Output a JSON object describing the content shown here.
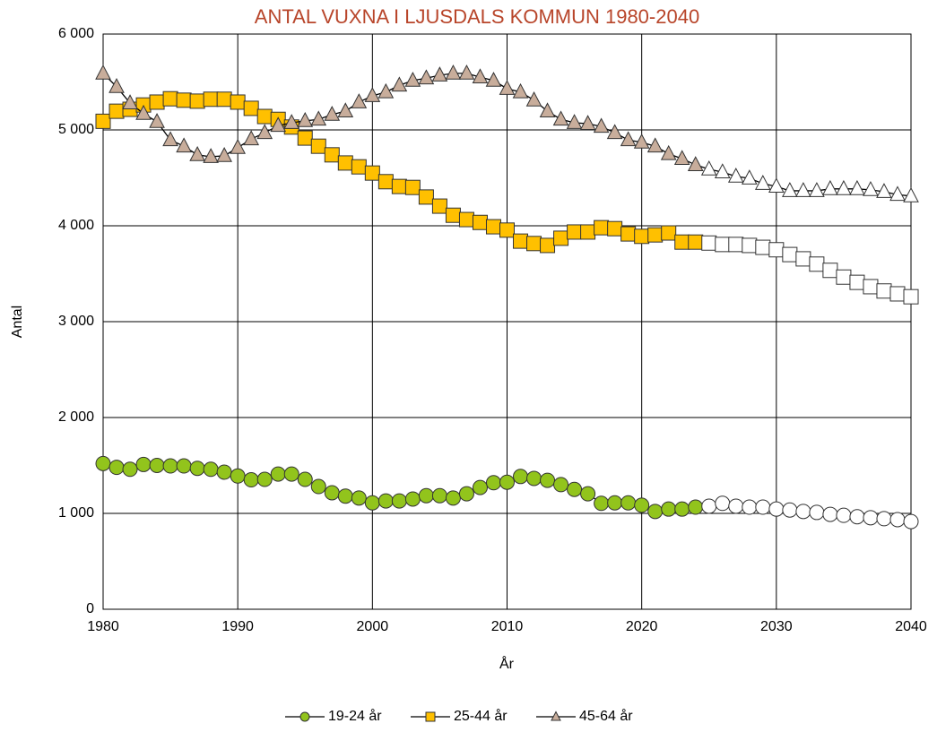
{
  "chart_data": {
    "type": "line",
    "title": "ANTAL VUXNA I LJUSDALS KOMMUN 1980-2040",
    "x_label": "År",
    "y_label": "Antal",
    "x": [
      1980,
      1981,
      1982,
      1983,
      1984,
      1985,
      1986,
      1987,
      1988,
      1989,
      1990,
      1991,
      1992,
      1993,
      1994,
      1995,
      1996,
      1997,
      1998,
      1999,
      2000,
      2001,
      2002,
      2003,
      2004,
      2005,
      2006,
      2007,
      2008,
      2009,
      2010,
      2011,
      2012,
      2013,
      2014,
      2015,
      2016,
      2017,
      2018,
      2019,
      2020,
      2021,
      2022,
      2023,
      2024,
      2025,
      2026,
      2027,
      2028,
      2029,
      2030,
      2031,
      2032,
      2033,
      2034,
      2035,
      2036,
      2037,
      2038,
      2039,
      2040
    ],
    "series": [
      {
        "name": "19-24 år",
        "color": "#92c41c",
        "marker": "circle",
        "values": [
          1520,
          1480,
          1460,
          1510,
          1500,
          1495,
          1495,
          1470,
          1460,
          1430,
          1390,
          1350,
          1355,
          1410,
          1410,
          1355,
          1280,
          1215,
          1180,
          1160,
          1110,
          1130,
          1130,
          1150,
          1185,
          1185,
          1160,
          1205,
          1270,
          1320,
          1325,
          1385,
          1365,
          1345,
          1300,
          1250,
          1205,
          1105,
          1110,
          1110,
          1085,
          1020,
          1045,
          1045,
          1065,
          1075,
          1105,
          1075,
          1065,
          1065,
          1045,
          1035,
          1020,
          1010,
          990,
          980,
          965,
          955,
          945,
          935,
          915
        ]
      },
      {
        "name": "25-44 år",
        "color": "#ffc000",
        "marker": "square",
        "values": [
          5090,
          5195,
          5215,
          5260,
          5290,
          5325,
          5310,
          5300,
          5320,
          5320,
          5290,
          5225,
          5140,
          5110,
          5030,
          4915,
          4830,
          4740,
          4655,
          4615,
          4550,
          4460,
          4410,
          4400,
          4300,
          4205,
          4110,
          4065,
          4035,
          3990,
          3955,
          3840,
          3815,
          3795,
          3870,
          3935,
          3935,
          3980,
          3970,
          3915,
          3890,
          3905,
          3925,
          3830,
          3830,
          3820,
          3805,
          3805,
          3795,
          3775,
          3750,
          3700,
          3655,
          3600,
          3535,
          3465,
          3410,
          3365,
          3320,
          3290,
          3260
        ]
      },
      {
        "name": "45-64 år",
        "color": "#c8ad9b",
        "marker": "triangle",
        "values": [
          5590,
          5450,
          5280,
          5170,
          5085,
          4895,
          4830,
          4740,
          4720,
          4730,
          4815,
          4905,
          4970,
          5045,
          5075,
          5095,
          5110,
          5160,
          5195,
          5290,
          5355,
          5395,
          5465,
          5515,
          5540,
          5570,
          5590,
          5590,
          5550,
          5515,
          5430,
          5395,
          5310,
          5195,
          5110,
          5075,
          5065,
          5035,
          4970,
          4895,
          4870,
          4830,
          4750,
          4700,
          4635,
          4590,
          4560,
          4515,
          4495,
          4440,
          4410,
          4365,
          4365,
          4365,
          4385,
          4385,
          4385,
          4375,
          4355,
          4325,
          4310
        ]
      }
    ],
    "open_markers_from": 2025,
    "line_color": "#000000",
    "xlim": [
      1980,
      2040
    ],
    "xticks": [
      1980,
      1990,
      2000,
      2010,
      2020,
      2030,
      2040
    ],
    "ylim": [
      0,
      6000
    ],
    "yticks": [
      {
        "value": 0,
        "label": "0"
      },
      {
        "value": 1000,
        "label": "1 000"
      },
      {
        "value": 2000,
        "label": "2 000"
      },
      {
        "value": 3000,
        "label": "3 000"
      },
      {
        "value": 4000,
        "label": "4 000"
      },
      {
        "value": 5000,
        "label": "5 000"
      },
      {
        "value": 6000,
        "label": "6 000"
      }
    ],
    "grid": true,
    "legend": "bottom"
  }
}
